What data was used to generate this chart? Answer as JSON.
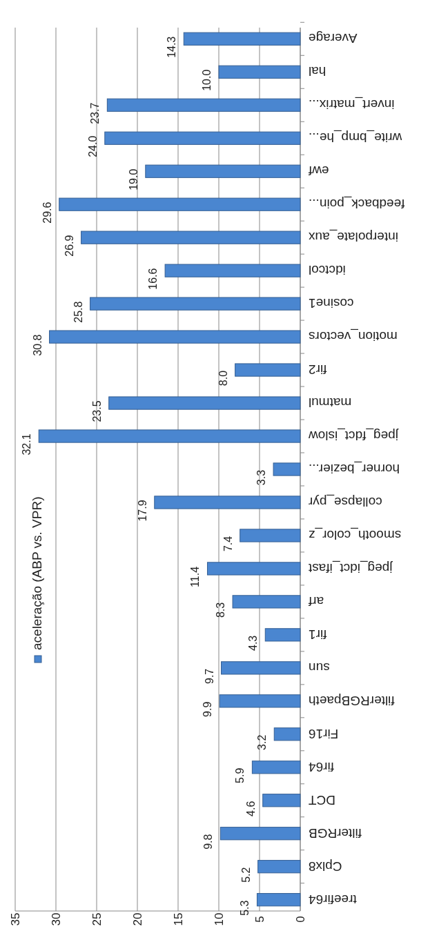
{
  "chart_data": {
    "type": "bar",
    "orientation": "horizontal",
    "categories": [
      "Average",
      "hal",
      "invert_matrix...",
      "write_bmp_he...",
      "ewf",
      "feedback_poin...",
      "interpolate_aux",
      "idctcol",
      "cosine1",
      "motion_vectors",
      "fir2",
      "matmul",
      "jpeg_fdct_islow",
      "horner_bezier...",
      "collapse_pyr",
      "smooth_color_z",
      "jpeg_idct_ifast",
      "arf",
      "fir1",
      "sun",
      "filterRGBpaeth",
      "Fir16",
      "fir64",
      "DCT",
      "filterRGB",
      "Cplx8",
      "treefir64"
    ],
    "series": [
      {
        "name": "aceleração (ABP vs. VPR)",
        "color": "#4a86d0",
        "values": [
          14.3,
          10.0,
          23.7,
          24.0,
          19.0,
          29.6,
          26.9,
          16.6,
          25.8,
          30.8,
          8.0,
          23.5,
          32.1,
          3.3,
          17.9,
          7.4,
          11.4,
          8.3,
          4.3,
          9.7,
          9.9,
          3.2,
          5.9,
          4.6,
          9.8,
          5.2,
          5.3
        ],
        "value_labels": [
          "14.3",
          "10.0",
          "23.7",
          "24.0",
          "19.0",
          "29.6",
          "26.9",
          "16.6",
          "25.8",
          "30.8",
          "8.0",
          "23.5",
          "32.1",
          "3.3",
          "17.9",
          "7.4",
          "11.4",
          "8.3",
          "4.3",
          "9.7",
          "9.9",
          "3.2",
          "5.9",
          "4.6",
          "9.8",
          "5.2",
          "5.3"
        ]
      }
    ],
    "xlim": [
      35,
      0
    ],
    "xticks": [
      35,
      30,
      25,
      20,
      15,
      10,
      5,
      0
    ],
    "grid": "x",
    "legend": "left"
  }
}
